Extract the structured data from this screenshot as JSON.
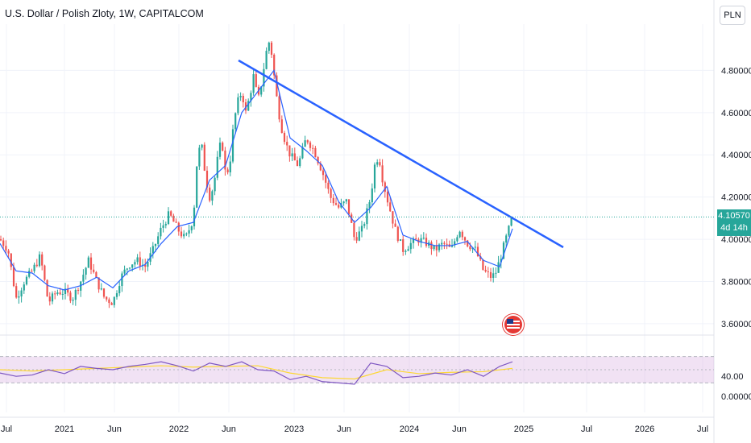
{
  "header": {
    "title": "U.S. Dollar / Polish Zloty, 1W, CAPITALCOM",
    "currency": "PLN"
  },
  "price_tag": {
    "price": "4.10570",
    "countdown": "4d 14h"
  },
  "colors": {
    "up": "#26a69a",
    "down": "#ef5350",
    "ma": "#2962ff",
    "trendline": "#2962ff",
    "rsi": "#7e57c2",
    "rsi_ma": "#fdd835",
    "rsi_band": "#e1bee7"
  },
  "chart_data": [
    {
      "type": "candlestick",
      "title": "U.S. Dollar / Polish Zloty, 1W, CAPITALCOM",
      "x_ticks": [
        "Jul",
        "2021",
        "Jun",
        "2022",
        "Jun",
        "2023",
        "Jun",
        "2024",
        "Jun",
        "2025",
        "Jul",
        "2026",
        "Jul"
      ],
      "y_ticks": [
        "4.80000",
        "4.60000",
        "4.40000",
        "4.20000",
        "4.00000",
        "3.80000",
        "3.60000"
      ],
      "ylim": [
        3.55,
        5.0
      ],
      "close_path": [
        [
          0,
          4.0
        ],
        [
          10,
          3.95
        ],
        [
          20,
          3.72
        ],
        [
          30,
          3.8
        ],
        [
          40,
          3.85
        ],
        [
          50,
          3.92
        ],
        [
          60,
          3.7
        ],
        [
          70,
          3.75
        ],
        [
          80,
          3.75
        ],
        [
          90,
          3.72
        ],
        [
          100,
          3.8
        ],
        [
          110,
          3.9
        ],
        [
          120,
          3.8
        ],
        [
          130,
          3.72
        ],
        [
          140,
          3.7
        ],
        [
          150,
          3.82
        ],
        [
          160,
          3.88
        ],
        [
          170,
          3.9
        ],
        [
          180,
          3.87
        ],
        [
          190,
          3.95
        ],
        [
          200,
          4.05
        ],
        [
          210,
          4.12
        ],
        [
          220,
          4.05
        ],
        [
          230,
          4.0
        ],
        [
          240,
          4.1
        ],
        [
          245,
          4.4
        ],
        [
          250,
          4.45
        ],
        [
          255,
          4.3
        ],
        [
          260,
          4.2
        ],
        [
          265,
          4.25
        ],
        [
          270,
          4.38
        ],
        [
          275,
          4.48
        ],
        [
          280,
          4.3
        ],
        [
          285,
          4.35
        ],
        [
          290,
          4.55
        ],
        [
          295,
          4.65
        ],
        [
          300,
          4.7
        ],
        [
          305,
          4.6
        ],
        [
          310,
          4.68
        ],
        [
          315,
          4.78
        ],
        [
          320,
          4.65
        ],
        [
          325,
          4.75
        ],
        [
          330,
          4.88
        ],
        [
          335,
          4.95
        ],
        [
          340,
          4.78
        ],
        [
          345,
          4.62
        ],
        [
          350,
          4.52
        ],
        [
          355,
          4.45
        ],
        [
          360,
          4.4
        ],
        [
          370,
          4.35
        ],
        [
          380,
          4.48
        ],
        [
          390,
          4.42
        ],
        [
          400,
          4.32
        ],
        [
          410,
          4.2
        ],
        [
          420,
          4.15
        ],
        [
          430,
          4.18
        ],
        [
          440,
          4.0
        ],
        [
          450,
          4.05
        ],
        [
          460,
          4.2
        ],
        [
          465,
          4.35
        ],
        [
          470,
          4.4
        ],
        [
          475,
          4.28
        ],
        [
          480,
          4.2
        ],
        [
          490,
          4.05
        ],
        [
          500,
          3.95
        ],
        [
          510,
          3.98
        ],
        [
          520,
          4.0
        ],
        [
          530,
          3.98
        ],
        [
          540,
          3.95
        ],
        [
          550,
          3.98
        ],
        [
          560,
          3.95
        ],
        [
          570,
          4.05
        ],
        [
          580,
          3.98
        ],
        [
          590,
          3.95
        ],
        [
          600,
          3.85
        ],
        [
          610,
          3.82
        ],
        [
          615,
          3.84
        ],
        [
          620,
          3.9
        ],
        [
          630,
          4.03
        ],
        [
          636,
          4.1057
        ]
      ],
      "moving_average": {
        "values": [
          [
            0,
            3.98
          ],
          [
            20,
            3.85
          ],
          [
            40,
            3.84
          ],
          [
            60,
            3.78
          ],
          [
            80,
            3.76
          ],
          [
            100,
            3.78
          ],
          [
            120,
            3.82
          ],
          [
            140,
            3.77
          ],
          [
            160,
            3.85
          ],
          [
            180,
            3.88
          ],
          [
            200,
            3.98
          ],
          [
            220,
            4.06
          ],
          [
            240,
            4.08
          ],
          [
            260,
            4.28
          ],
          [
            280,
            4.35
          ],
          [
            300,
            4.6
          ],
          [
            320,
            4.7
          ],
          [
            340,
            4.8
          ],
          [
            360,
            4.48
          ],
          [
            380,
            4.42
          ],
          [
            400,
            4.35
          ],
          [
            420,
            4.18
          ],
          [
            440,
            4.08
          ],
          [
            460,
            4.15
          ],
          [
            480,
            4.25
          ],
          [
            500,
            4.02
          ],
          [
            520,
            3.99
          ],
          [
            540,
            3.97
          ],
          [
            560,
            3.97
          ],
          [
            580,
            3.99
          ],
          [
            600,
            3.9
          ],
          [
            620,
            3.87
          ],
          [
            636,
            4.05
          ]
        ]
      },
      "trendline": {
        "from": [
          "2022-08",
          4.84
        ],
        "to": [
          "2025-06",
          3.95
        ]
      },
      "last_price": 4.1057
    },
    {
      "type": "line",
      "indicator": "RSI",
      "y_ticks": [
        "40.00",
        "0.00000"
      ],
      "band": [
        30,
        70
      ],
      "midline": 50,
      "series": [
        {
          "values": [
            [
              0,
              45
            ],
            [
              20,
              40
            ],
            [
              40,
              42
            ],
            [
              60,
              50
            ],
            [
              80,
              44
            ],
            [
              100,
              55
            ],
            [
              120,
              52
            ],
            [
              140,
              50
            ],
            [
              160,
              55
            ],
            [
              180,
              58
            ],
            [
              200,
              62
            ],
            [
              220,
              56
            ],
            [
              240,
              48
            ],
            [
              260,
              60
            ],
            [
              280,
              55
            ],
            [
              300,
              62
            ],
            [
              320,
              50
            ],
            [
              340,
              48
            ],
            [
              360,
              35
            ],
            [
              380,
              40
            ],
            [
              400,
              32
            ],
            [
              420,
              30
            ],
            [
              440,
              28
            ],
            [
              460,
              60
            ],
            [
              480,
              55
            ],
            [
              500,
              38
            ],
            [
              520,
              40
            ],
            [
              540,
              45
            ],
            [
              560,
              42
            ],
            [
              580,
              50
            ],
            [
              600,
              40
            ],
            [
              620,
              55
            ],
            [
              636,
              62
            ]
          ]
        },
        {
          "values": [
            [
              0,
              50
            ],
            [
              40,
              48
            ],
            [
              80,
              50
            ],
            [
              120,
              52
            ],
            [
              160,
              54
            ],
            [
              200,
              56
            ],
            [
              240,
              54
            ],
            [
              280,
              55
            ],
            [
              320,
              56
            ],
            [
              360,
              45
            ],
            [
              400,
              38
            ],
            [
              440,
              36
            ],
            [
              480,
              50
            ],
            [
              520,
              44
            ],
            [
              560,
              46
            ],
            [
              600,
              47
            ],
            [
              636,
              52
            ]
          ]
        }
      ]
    }
  ]
}
